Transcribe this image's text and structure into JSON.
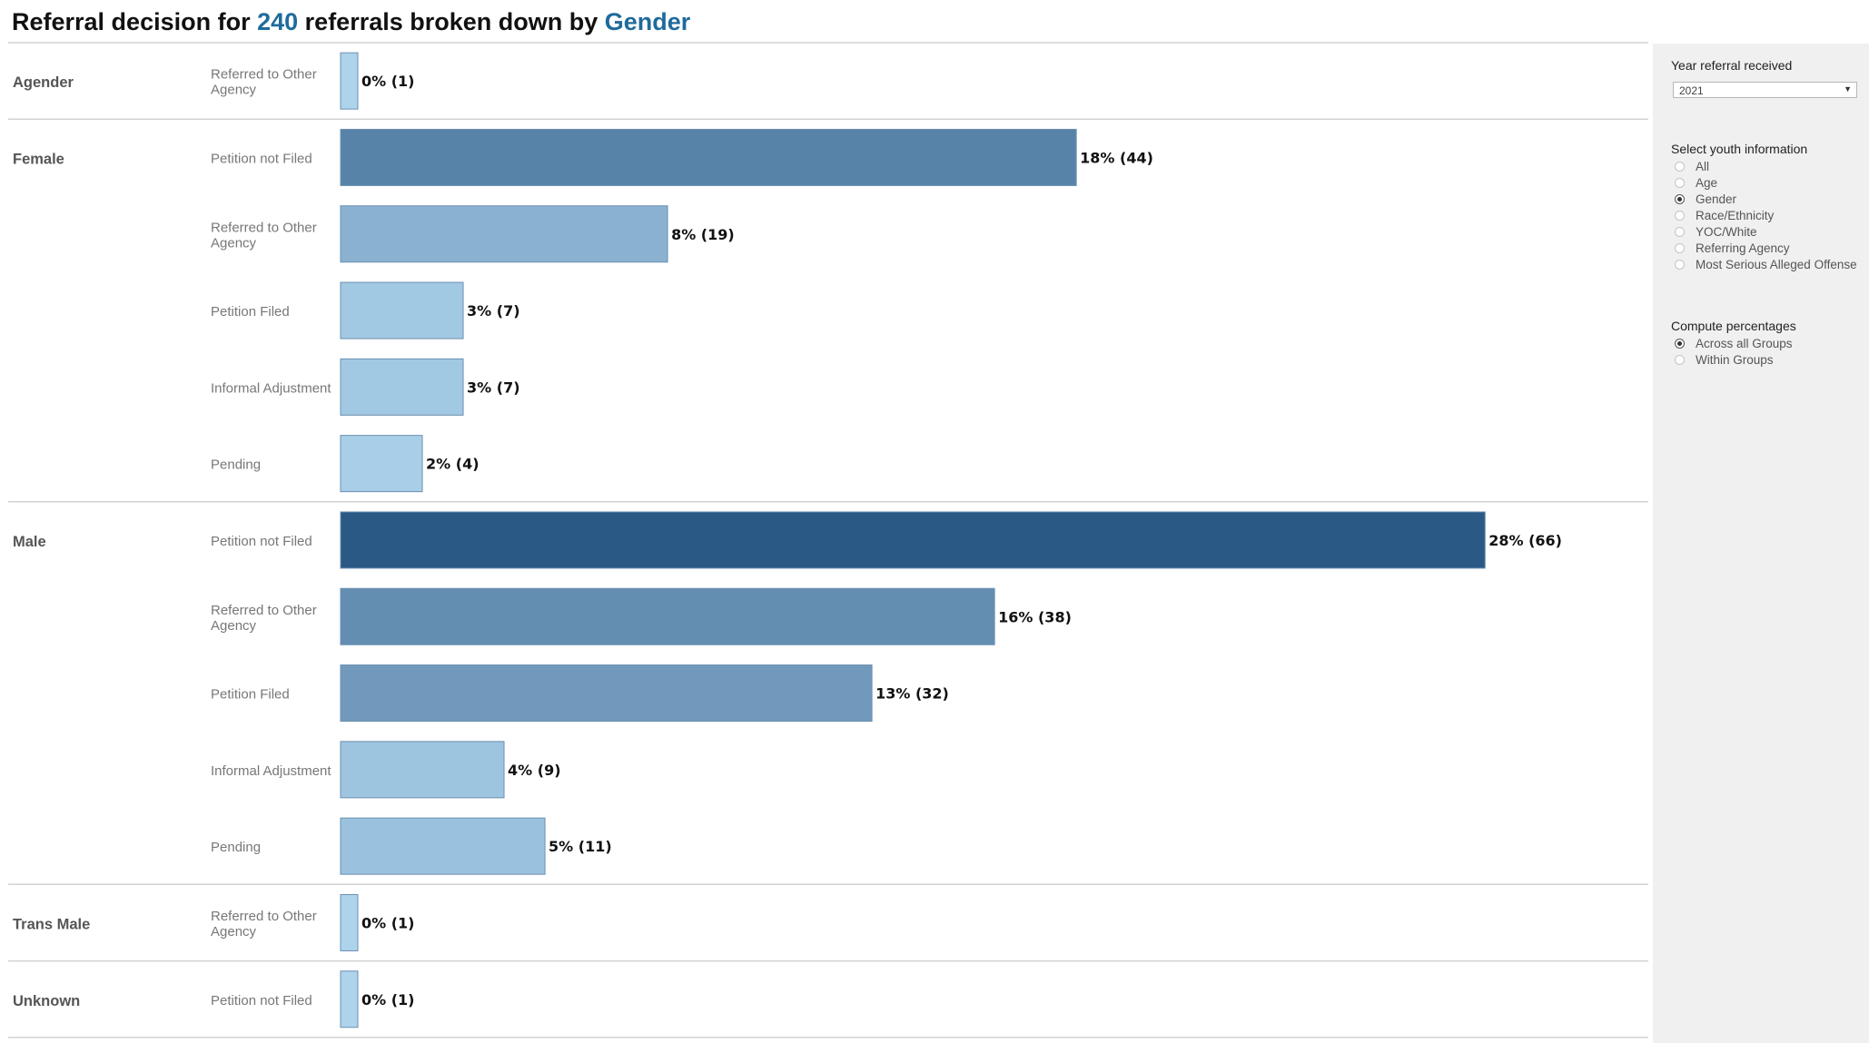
{
  "title": {
    "prefix": "Referral decision for",
    "count": "240",
    "middle": "referrals broken down by",
    "breakdown": "Gender"
  },
  "colors": {
    "highlight": "#1f6b9c",
    "bar_light": "#b0d6ee",
    "bar_dark": "#2b5985",
    "bar_outline": "#6b8fb0",
    "separator": "#d2d2d2",
    "panel_bg": "#f0f0f0"
  },
  "chart_data": {
    "type": "bar",
    "orientation": "horizontal",
    "grid": false,
    "legend": "none",
    "xlim": [
      0,
      30
    ],
    "groups": [
      {
        "name": "Agender",
        "rows": [
          {
            "category": "Referred to Other Agency",
            "percent": 0,
            "count": 1,
            "label": "0%  (1)"
          }
        ]
      },
      {
        "name": "Female",
        "rows": [
          {
            "category": "Petition not Filed",
            "percent": 18,
            "count": 44,
            "label": "18%  (44)"
          },
          {
            "category": "Referred to Other Agency",
            "percent": 8,
            "count": 19,
            "label": "8%  (19)"
          },
          {
            "category": "Petition Filed",
            "percent": 3,
            "count": 7,
            "label": "3%  (7)"
          },
          {
            "category": "Informal Adjustment",
            "percent": 3,
            "count": 7,
            "label": "3%  (7)"
          },
          {
            "category": "Pending",
            "percent": 2,
            "count": 4,
            "label": "2%  (4)"
          }
        ]
      },
      {
        "name": "Male",
        "rows": [
          {
            "category": "Petition not Filed",
            "percent": 28,
            "count": 66,
            "label": "28%  (66)"
          },
          {
            "category": "Referred to Other Agency",
            "percent": 16,
            "count": 38,
            "label": "16%  (38)"
          },
          {
            "category": "Petition Filed",
            "percent": 13,
            "count": 32,
            "label": "13%  (32)"
          },
          {
            "category": "Informal Adjustment",
            "percent": 4,
            "count": 9,
            "label": "4%  (9)"
          },
          {
            "category": "Pending",
            "percent": 5,
            "count": 11,
            "label": "5%  (11)"
          }
        ]
      },
      {
        "name": "Trans Male",
        "rows": [
          {
            "category": "Referred to Other Agency",
            "percent": 0,
            "count": 1,
            "label": "0%  (1)"
          }
        ]
      },
      {
        "name": "Unknown",
        "rows": [
          {
            "category": "Petition not Filed",
            "percent": 0,
            "count": 1,
            "label": "0%  (1)"
          }
        ]
      }
    ]
  },
  "filters": {
    "year": {
      "label": "Year referral received",
      "value": "2021"
    },
    "youth_info": {
      "label": "Select youth information",
      "options": [
        "All",
        "Age",
        "Gender",
        "Race/Ethnicity",
        "YOC/White",
        "Referring Agency",
        "Most Serious Alleged Offense"
      ],
      "selected": "Gender"
    },
    "percentages": {
      "label": "Compute percentages",
      "options": [
        "Across all Groups",
        "Within Groups"
      ],
      "selected": "Across all Groups"
    }
  }
}
